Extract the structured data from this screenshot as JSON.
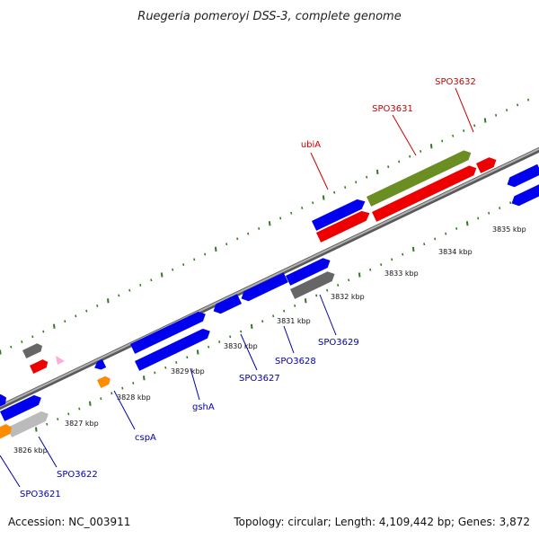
{
  "title": "Ruegeria pomeroyi DSS-3, complete genome",
  "accession_text": "Accession: NC_003911",
  "summary_text": "Topology: circular; Length: 4,109,442 bp; Genes: 3,872",
  "colors": {
    "forward": "#0000ee",
    "reverse": "#ee0000",
    "olive": "#6b8e23",
    "gray_dark": "#666666",
    "gray_light": "#bbbbbb",
    "orange": "#ff8c00",
    "pink": "#ffaadd",
    "tick": "#2e7d1f",
    "backbone": "#8a8a8a",
    "label_red": "#cc0000",
    "label_blue": "#0000aa"
  },
  "scale_labels": [
    "3826 kbp",
    "3827 kbp",
    "3828 kbp",
    "3829 kbp",
    "3830 kbp",
    "3831 kbp",
    "3832 kbp",
    "3833 kbp",
    "3834 kbp",
    "3835 kbp"
  ],
  "top_labels": [
    "ubiA",
    "SPO3631",
    "SPO3632"
  ],
  "bottom_labels": [
    "SPO3621",
    "SPO3622",
    "cspA",
    "gshA",
    "SPO3627",
    "SPO3628",
    "SPO3629"
  ]
}
